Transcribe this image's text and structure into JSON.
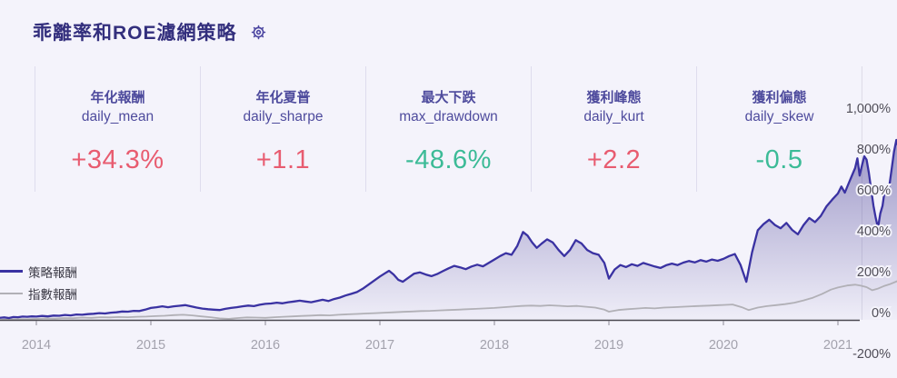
{
  "page": {
    "title": "乖離率和ROE濾網策略",
    "settings_icon": "gear-icon"
  },
  "colors": {
    "page_bg": "#f4f3fb",
    "title": "#332f7d",
    "metric_label": "#4e4b9d",
    "positive_red": "#e85c70",
    "negative_green": "#3cbb97",
    "strategy_line": "#3a32a2",
    "index_line": "#b1b0b6",
    "axis_line": "#4a4850",
    "tick_label": "#a3a2ad",
    "y_label": "#504e58",
    "divider": "#dedced"
  },
  "metrics": [
    {
      "zh": "年化報酬",
      "en": "daily_mean",
      "value": "+34.3%",
      "color": "#e85c70"
    },
    {
      "zh": "年化夏普",
      "en": "daily_sharpe",
      "value": "+1.1",
      "color": "#e85c70"
    },
    {
      "zh": "最大下跌",
      "en": "max_drawdown",
      "value": "-48.6%",
      "color": "#3cbb97"
    },
    {
      "zh": "獲利峰態",
      "en": "daily_kurt",
      "value": "+2.2",
      "color": "#e85c70"
    },
    {
      "zh": "獲利偏態",
      "en": "daily_skew",
      "value": "-0.5",
      "color": "#3cbb97"
    }
  ],
  "chart_data": {
    "type": "area",
    "title": "",
    "xlabel": "",
    "ylabel": "",
    "x_range": [
      2013.68,
      2021.52
    ],
    "ylim": [
      -200,
      1000
    ],
    "grid": "off",
    "guide_line_x": 2021.21,
    "legend_position": "left-inside",
    "x_ticks": [
      "2014",
      "2015",
      "2016",
      "2017",
      "2018",
      "2019",
      "2020",
      "2021"
    ],
    "x_tick_values": [
      2014,
      2015,
      2016,
      2017,
      2018,
      2019,
      2020,
      2021
    ],
    "y_ticks": [
      "1,000%",
      "800%",
      "600%",
      "400%",
      "200%",
      "0%",
      "-200%"
    ],
    "y_tick_values": [
      1000,
      800,
      600,
      400,
      200,
      0,
      -200
    ],
    "legend": [
      {
        "label": "策略報酬",
        "color": "#3a32a2"
      },
      {
        "label": "指數報酬",
        "color": "#b1b0b6"
      }
    ],
    "series": [
      {
        "name": "策略報酬",
        "color": "#3a32a2",
        "fill": true,
        "unit": "%",
        "points": [
          [
            2013.68,
            10
          ],
          [
            2013.72,
            12
          ],
          [
            2013.76,
            9
          ],
          [
            2013.8,
            14
          ],
          [
            2013.84,
            13
          ],
          [
            2013.88,
            16
          ],
          [
            2013.92,
            15
          ],
          [
            2013.96,
            17
          ],
          [
            2014,
            16
          ],
          [
            2014.05,
            19
          ],
          [
            2014.1,
            17
          ],
          [
            2014.15,
            21
          ],
          [
            2014.2,
            20
          ],
          [
            2014.25,
            24
          ],
          [
            2014.3,
            22
          ],
          [
            2014.35,
            26
          ],
          [
            2014.4,
            25
          ],
          [
            2014.45,
            28
          ],
          [
            2014.5,
            30
          ],
          [
            2014.55,
            33
          ],
          [
            2014.6,
            31
          ],
          [
            2014.65,
            35
          ],
          [
            2014.7,
            37
          ],
          [
            2014.75,
            41
          ],
          [
            2014.8,
            40
          ],
          [
            2014.85,
            44
          ],
          [
            2014.9,
            43
          ],
          [
            2014.95,
            50
          ],
          [
            2015,
            58
          ],
          [
            2015.05,
            62
          ],
          [
            2015.1,
            66
          ],
          [
            2015.15,
            62
          ],
          [
            2015.2,
            66
          ],
          [
            2015.25,
            69
          ],
          [
            2015.3,
            72
          ],
          [
            2015.35,
            66
          ],
          [
            2015.4,
            60
          ],
          [
            2015.45,
            55
          ],
          [
            2015.5,
            52
          ],
          [
            2015.55,
            50
          ],
          [
            2015.6,
            48
          ],
          [
            2015.65,
            54
          ],
          [
            2015.7,
            58
          ],
          [
            2015.75,
            62
          ],
          [
            2015.8,
            66
          ],
          [
            2015.85,
            70
          ],
          [
            2015.9,
            67
          ],
          [
            2015.95,
            74
          ],
          [
            2016,
            78
          ],
          [
            2016.05,
            80
          ],
          [
            2016.1,
            84
          ],
          [
            2016.15,
            81
          ],
          [
            2016.2,
            86
          ],
          [
            2016.25,
            90
          ],
          [
            2016.3,
            94
          ],
          [
            2016.35,
            90
          ],
          [
            2016.4,
            86
          ],
          [
            2016.45,
            92
          ],
          [
            2016.5,
            98
          ],
          [
            2016.55,
            92
          ],
          [
            2016.6,
            102
          ],
          [
            2016.65,
            109
          ],
          [
            2016.7,
            119
          ],
          [
            2016.75,
            127
          ],
          [
            2016.8,
            136
          ],
          [
            2016.85,
            152
          ],
          [
            2016.9,
            172
          ],
          [
            2016.95,
            192
          ],
          [
            2017,
            212
          ],
          [
            2017.05,
            230
          ],
          [
            2017.08,
            240
          ],
          [
            2017.12,
            222
          ],
          [
            2017.16,
            196
          ],
          [
            2017.2,
            186
          ],
          [
            2017.25,
            206
          ],
          [
            2017.3,
            226
          ],
          [
            2017.35,
            232
          ],
          [
            2017.4,
            222
          ],
          [
            2017.45,
            214
          ],
          [
            2017.5,
            224
          ],
          [
            2017.55,
            238
          ],
          [
            2017.6,
            252
          ],
          [
            2017.65,
            264
          ],
          [
            2017.7,
            257
          ],
          [
            2017.75,
            248
          ],
          [
            2017.8,
            261
          ],
          [
            2017.85,
            270
          ],
          [
            2017.9,
            262
          ],
          [
            2017.95,
            278
          ],
          [
            2018,
            295
          ],
          [
            2018.05,
            312
          ],
          [
            2018.1,
            326
          ],
          [
            2018.15,
            318
          ],
          [
            2018.2,
            362
          ],
          [
            2018.25,
            430
          ],
          [
            2018.29,
            412
          ],
          [
            2018.33,
            378
          ],
          [
            2018.37,
            352
          ],
          [
            2018.41,
            372
          ],
          [
            2018.46,
            394
          ],
          [
            2018.51,
            378
          ],
          [
            2018.56,
            342
          ],
          [
            2018.61,
            312
          ],
          [
            2018.66,
            342
          ],
          [
            2018.71,
            390
          ],
          [
            2018.76,
            374
          ],
          [
            2018.81,
            342
          ],
          [
            2018.86,
            326
          ],
          [
            2018.91,
            318
          ],
          [
            2018.96,
            278
          ],
          [
            2019,
            202
          ],
          [
            2019.05,
            246
          ],
          [
            2019.1,
            268
          ],
          [
            2019.15,
            258
          ],
          [
            2019.2,
            272
          ],
          [
            2019.25,
            264
          ],
          [
            2019.3,
            278
          ],
          [
            2019.35,
            270
          ],
          [
            2019.4,
            261
          ],
          [
            2019.45,
            254
          ],
          [
            2019.5,
            267
          ],
          [
            2019.55,
            275
          ],
          [
            2019.6,
            268
          ],
          [
            2019.65,
            280
          ],
          [
            2019.7,
            288
          ],
          [
            2019.75,
            281
          ],
          [
            2019.8,
            292
          ],
          [
            2019.85,
            285
          ],
          [
            2019.9,
            295
          ],
          [
            2019.95,
            289
          ],
          [
            2020,
            298
          ],
          [
            2020.05,
            312
          ],
          [
            2020.1,
            322
          ],
          [
            2020.15,
            268
          ],
          [
            2020.2,
            186
          ],
          [
            2020.25,
            330
          ],
          [
            2020.3,
            438
          ],
          [
            2020.35,
            468
          ],
          [
            2020.4,
            490
          ],
          [
            2020.45,
            464
          ],
          [
            2020.5,
            448
          ],
          [
            2020.55,
            474
          ],
          [
            2020.6,
            440
          ],
          [
            2020.65,
            418
          ],
          [
            2020.7,
            464
          ],
          [
            2020.75,
            498
          ],
          [
            2020.8,
            478
          ],
          [
            2020.85,
            508
          ],
          [
            2020.9,
            555
          ],
          [
            2020.95,
            588
          ],
          [
            2021,
            618
          ],
          [
            2021.03,
            652
          ],
          [
            2021.06,
            622
          ],
          [
            2021.09,
            662
          ],
          [
            2021.12,
            702
          ],
          [
            2021.15,
            742
          ],
          [
            2021.17,
            790
          ],
          [
            2021.19,
            706
          ],
          [
            2021.21,
            756
          ],
          [
            2021.23,
            800
          ],
          [
            2021.25,
            784
          ],
          [
            2021.27,
            720
          ],
          [
            2021.29,
            640
          ],
          [
            2021.31,
            558
          ],
          [
            2021.33,
            498
          ],
          [
            2021.35,
            450
          ],
          [
            2021.37,
            520
          ],
          [
            2021.39,
            558
          ],
          [
            2021.41,
            640
          ],
          [
            2021.43,
            614
          ],
          [
            2021.45,
            660
          ],
          [
            2021.47,
            740
          ],
          [
            2021.49,
            822
          ],
          [
            2021.51,
            880
          ],
          [
            2021.52,
            858
          ]
        ]
      },
      {
        "name": "指數報酬",
        "color": "#b1b0b6",
        "fill": false,
        "unit": "%",
        "points": [
          [
            2013.68,
            0
          ],
          [
            2013.76,
            2
          ],
          [
            2013.84,
            4
          ],
          [
            2013.92,
            3
          ],
          [
            2014,
            5
          ],
          [
            2014.08,
            7
          ],
          [
            2014.16,
            6
          ],
          [
            2014.24,
            9
          ],
          [
            2014.32,
            8
          ],
          [
            2014.4,
            11
          ],
          [
            2014.48,
            10
          ],
          [
            2014.56,
            13
          ],
          [
            2014.64,
            12
          ],
          [
            2014.72,
            14
          ],
          [
            2014.8,
            13
          ],
          [
            2014.88,
            15
          ],
          [
            2014.96,
            16
          ],
          [
            2015.04,
            18
          ],
          [
            2015.12,
            20
          ],
          [
            2015.2,
            23
          ],
          [
            2015.28,
            25
          ],
          [
            2015.36,
            22
          ],
          [
            2015.44,
            17
          ],
          [
            2015.52,
            13
          ],
          [
            2015.6,
            7
          ],
          [
            2015.68,
            5
          ],
          [
            2015.76,
            9
          ],
          [
            2015.84,
            12
          ],
          [
            2015.92,
            11
          ],
          [
            2016,
            10
          ],
          [
            2016.08,
            13
          ],
          [
            2016.16,
            15
          ],
          [
            2016.24,
            17
          ],
          [
            2016.32,
            19
          ],
          [
            2016.4,
            21
          ],
          [
            2016.48,
            23
          ],
          [
            2016.56,
            22
          ],
          [
            2016.64,
            25
          ],
          [
            2016.72,
            27
          ],
          [
            2016.8,
            29
          ],
          [
            2016.88,
            31
          ],
          [
            2016.96,
            33
          ],
          [
            2017.04,
            35
          ],
          [
            2017.12,
            37
          ],
          [
            2017.2,
            39
          ],
          [
            2017.28,
            41
          ],
          [
            2017.36,
            43
          ],
          [
            2017.44,
            44
          ],
          [
            2017.52,
            46
          ],
          [
            2017.6,
            48
          ],
          [
            2017.68,
            50
          ],
          [
            2017.76,
            52
          ],
          [
            2017.84,
            54
          ],
          [
            2017.92,
            56
          ],
          [
            2018,
            58
          ],
          [
            2018.08,
            62
          ],
          [
            2018.16,
            65
          ],
          [
            2018.24,
            68
          ],
          [
            2018.32,
            70
          ],
          [
            2018.4,
            68
          ],
          [
            2018.48,
            71
          ],
          [
            2018.56,
            69
          ],
          [
            2018.64,
            66
          ],
          [
            2018.72,
            68
          ],
          [
            2018.8,
            64
          ],
          [
            2018.88,
            60
          ],
          [
            2018.96,
            50
          ],
          [
            2019,
            40
          ],
          [
            2019.08,
            48
          ],
          [
            2019.16,
            52
          ],
          [
            2019.24,
            55
          ],
          [
            2019.32,
            58
          ],
          [
            2019.4,
            56
          ],
          [
            2019.48,
            60
          ],
          [
            2019.56,
            62
          ],
          [
            2019.64,
            64
          ],
          [
            2019.72,
            66
          ],
          [
            2019.8,
            68
          ],
          [
            2019.88,
            70
          ],
          [
            2019.96,
            72
          ],
          [
            2020,
            73
          ],
          [
            2020.08,
            75
          ],
          [
            2020.16,
            62
          ],
          [
            2020.22,
            48
          ],
          [
            2020.3,
            60
          ],
          [
            2020.38,
            67
          ],
          [
            2020.46,
            72
          ],
          [
            2020.54,
            77
          ],
          [
            2020.62,
            84
          ],
          [
            2020.7,
            95
          ],
          [
            2020.78,
            108
          ],
          [
            2020.86,
            126
          ],
          [
            2020.94,
            148
          ],
          [
            2021,
            158
          ],
          [
            2021.08,
            168
          ],
          [
            2021.15,
            172
          ],
          [
            2021.2,
            167
          ],
          [
            2021.25,
            160
          ],
          [
            2021.3,
            145
          ],
          [
            2021.35,
            153
          ],
          [
            2021.4,
            165
          ],
          [
            2021.45,
            174
          ],
          [
            2021.52,
            190
          ]
        ]
      }
    ]
  }
}
